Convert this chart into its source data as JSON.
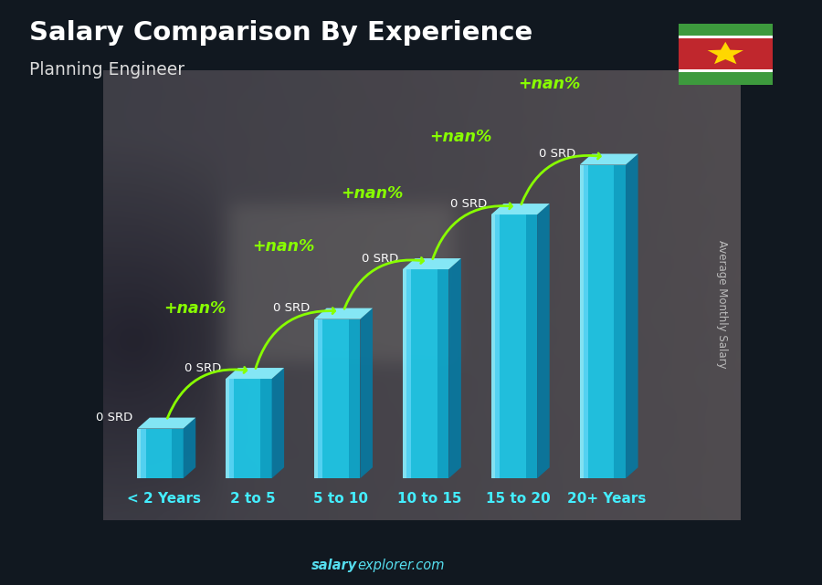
{
  "title_line1": "Salary Comparison By Experience",
  "title_line2": "Planning Engineer",
  "categories": [
    "< 2 Years",
    "2 to 5",
    "5 to 10",
    "10 to 15",
    "15 to 20",
    "20+ Years"
  ],
  "bar_labels": [
    "0 SRD",
    "0 SRD",
    "0 SRD",
    "0 SRD",
    "0 SRD",
    "0 SRD"
  ],
  "pct_labels": [
    "+nan%",
    "+nan%",
    "+nan%",
    "+nan%",
    "+nan%"
  ],
  "ylabel": "Average Monthly Salary",
  "website_normal": "explorer.com",
  "website_bold": "salary",
  "bar_heights": [
    1.0,
    2.0,
    3.2,
    4.2,
    5.3,
    6.3
  ],
  "bar_front_color": "#1ec8e8",
  "bar_light_color": "#55e8ff",
  "bar_dark_color": "#0898b8",
  "bar_side_color": "#0878a0",
  "bar_top_color": "#88f0ff",
  "pct_color": "#88ff00",
  "bar_label_color": "#ffffff",
  "xlabel_color": "#44eeff",
  "ylabel_color": "#bbbbbb",
  "title_color": "#ffffff",
  "subtitle_color": "#dddddd",
  "website_color": "#55ddee",
  "bg_overlay_color": [
    0.08,
    0.1,
    0.18
  ],
  "bg_overlay_alpha": 0.55,
  "figsize": [
    9.0,
    6.41
  ]
}
